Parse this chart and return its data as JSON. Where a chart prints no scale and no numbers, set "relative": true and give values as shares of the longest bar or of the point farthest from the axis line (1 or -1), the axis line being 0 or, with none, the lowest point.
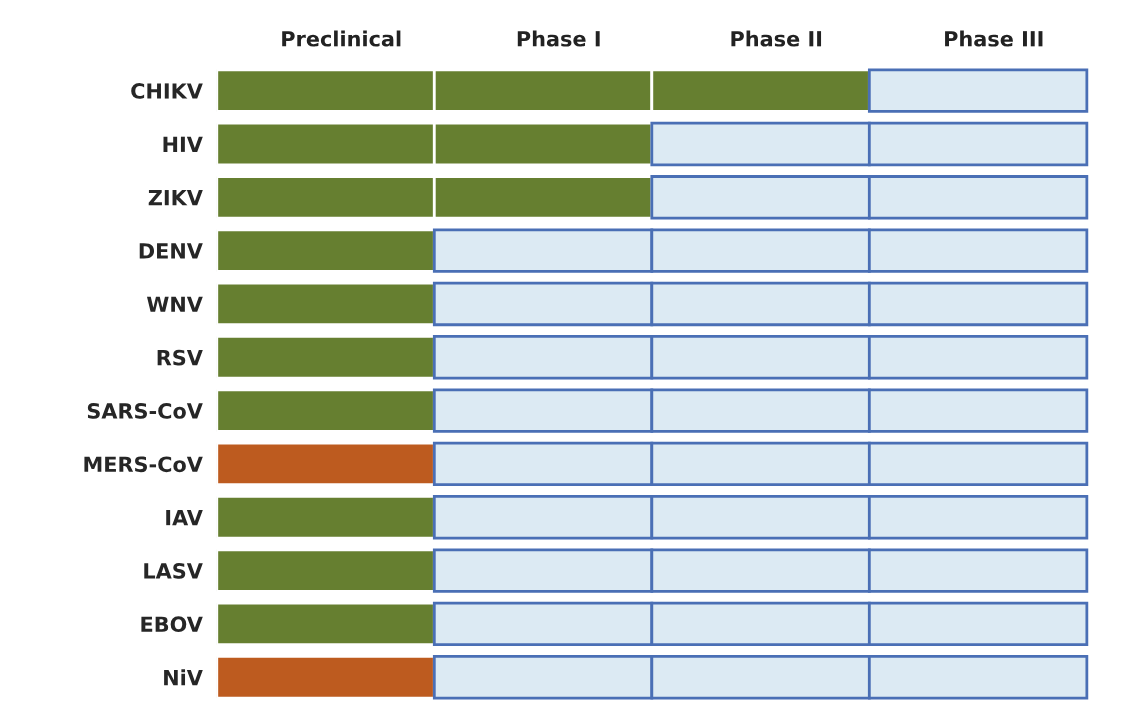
{
  "chart_data": {
    "type": "bar",
    "orientation": "horizontal",
    "stacked": true,
    "relative": true,
    "legend": false,
    "grid": false,
    "categories": [
      "CHIKV",
      "HIV",
      "ZIKV",
      "DENV",
      "WNV",
      "RSV",
      "SARS-CoV",
      "MERS-CoV",
      "IAV",
      "LASV",
      "EBOV",
      "NiV"
    ],
    "series": [
      {
        "name": "Preclinical",
        "values": [
          0.25,
          0.25,
          0.25,
          0.25,
          0.25,
          0.25,
          0.25,
          0.25,
          0.25,
          0.25,
          0.25,
          0.25
        ],
        "colors": [
          "#667f30",
          "#667f30",
          "#667f30",
          "#667f30",
          "#667f30",
          "#667f30",
          "#667f30",
          "#bd5b1f",
          "#667f30",
          "#667f30",
          "#667f30",
          "#bd5b1f"
        ]
      },
      {
        "name": "Phase I",
        "values": [
          0.25,
          0.25,
          0.25,
          0.25,
          0.25,
          0.25,
          0.25,
          0.25,
          0.25,
          0.25,
          0.25,
          0.25
        ],
        "colors": [
          "#667f30",
          "#667f30",
          "#667f30",
          "#dceaf3",
          "#dceaf3",
          "#dceaf3",
          "#dceaf3",
          "#dceaf3",
          "#dceaf3",
          "#dceaf3",
          "#dceaf3",
          "#dceaf3"
        ]
      },
      {
        "name": "Phase II",
        "values": [
          0.25,
          0.25,
          0.25,
          0.25,
          0.25,
          0.25,
          0.25,
          0.25,
          0.25,
          0.25,
          0.25,
          0.25
        ],
        "colors": [
          "#667f30",
          "#dceaf3",
          "#dceaf3",
          "#dceaf3",
          "#dceaf3",
          "#dceaf3",
          "#dceaf3",
          "#dceaf3",
          "#dceaf3",
          "#dceaf3",
          "#dceaf3",
          "#dceaf3"
        ]
      },
      {
        "name": "Phase III",
        "values": [
          0.25,
          0.25,
          0.25,
          0.25,
          0.25,
          0.25,
          0.25,
          0.25,
          0.25,
          0.25,
          0.25,
          0.25
        ],
        "colors": [
          "#dceaf3",
          "#dceaf3",
          "#dceaf3",
          "#dceaf3",
          "#dceaf3",
          "#dceaf3",
          "#dceaf3",
          "#dceaf3",
          "#dceaf3",
          "#dceaf3",
          "#dceaf3",
          "#dceaf3"
        ]
      }
    ]
  }
}
